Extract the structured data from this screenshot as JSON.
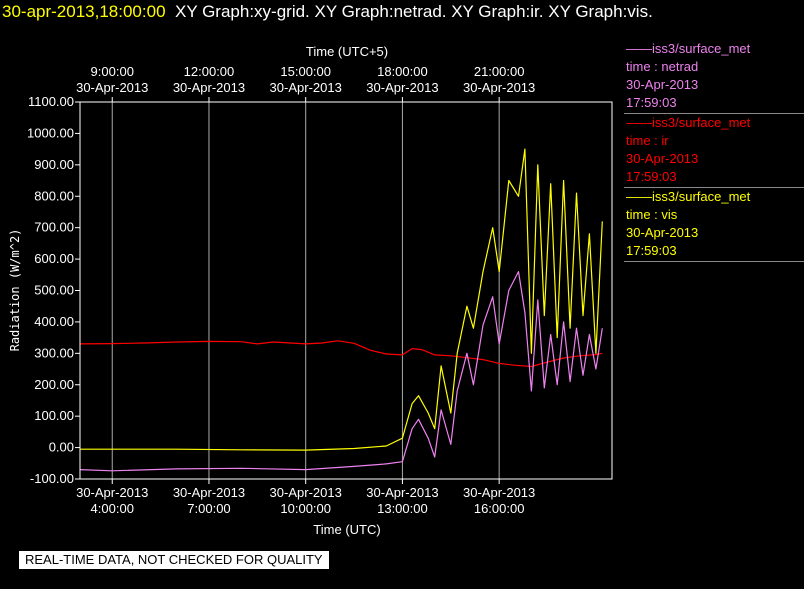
{
  "header": {
    "timestamp": "30-apr-2013,18:00:00",
    "graphs": "XY Graph:xy-grid.  XY Graph:netrad.  XY Graph:ir.  XY Graph:vis."
  },
  "disclaimer": "REAL-TIME DATA, NOT CHECKED FOR QUALITY",
  "legend": [
    {
      "title": "iss3/surface_met",
      "var": "time : netrad",
      "date": "30-Apr-2013",
      "time": "17:59:03",
      "color": "#ee82ee"
    },
    {
      "title": "iss3/surface_met",
      "var": "time : ir",
      "date": "30-Apr-2013",
      "time": "17:59:03",
      "color": "#ff0000"
    },
    {
      "title": "iss3/surface_met",
      "var": "time : vis",
      "date": "30-Apr-2013",
      "time": "17:59:03",
      "color": "#ffff00"
    }
  ],
  "chart_data": {
    "type": "line",
    "ylabel": "Radiation (W/m^2)",
    "xlabel": "Time (UTC)",
    "xlabel_top": "Time (UTC+5)",
    "ylim": [
      -100,
      1100
    ],
    "xlim_hours": [
      3.0,
      19.5
    ],
    "y_ticks": [
      "-100.00",
      "0.00",
      "100.00",
      "200.00",
      "300.00",
      "400.00",
      "500.00",
      "600.00",
      "700.00",
      "800.00",
      "900.00",
      "1000.00",
      "1100.00"
    ],
    "x_ticks_bottom": [
      {
        "h": 4,
        "date": "30-Apr-2013",
        "time": "4:00:00"
      },
      {
        "h": 7,
        "date": "30-Apr-2013",
        "time": "7:00:00"
      },
      {
        "h": 10,
        "date": "30-Apr-2013",
        "time": "10:00:00"
      },
      {
        "h": 13,
        "date": "30-Apr-2013",
        "time": "13:00:00"
      },
      {
        "h": 16,
        "date": "30-Apr-2013",
        "time": "16:00:00"
      }
    ],
    "x_ticks_top": [
      {
        "h": 4,
        "time": "9:00:00",
        "date": "30-Apr-2013"
      },
      {
        "h": 7,
        "time": "12:00:00",
        "date": "30-Apr-2013"
      },
      {
        "h": 10,
        "time": "15:00:00",
        "date": "30-Apr-2013"
      },
      {
        "h": 13,
        "time": "18:00:00",
        "date": "30-Apr-2013"
      },
      {
        "h": 16,
        "time": "21:00:00",
        "date": "30-Apr-2013"
      }
    ],
    "grid": "vertical",
    "series": [
      {
        "name": "ir",
        "color": "#ff0000",
        "x": [
          3.0,
          4.0,
          5.0,
          6.0,
          7.0,
          8.0,
          8.5,
          9.0,
          10.0,
          10.5,
          11.0,
          11.5,
          12.0,
          12.5,
          13.0,
          13.3,
          13.6,
          14.0,
          14.5,
          15.0,
          15.5,
          16.0,
          16.5,
          17.0,
          17.5,
          18.0,
          18.5,
          19.0,
          19.2
        ],
        "y": [
          330,
          331,
          333,
          336,
          338,
          337,
          330,
          336,
          330,
          333,
          340,
          332,
          310,
          298,
          295,
          315,
          312,
          295,
          292,
          286,
          280,
          268,
          262,
          258,
          272,
          285,
          292,
          296,
          300
        ]
      },
      {
        "name": "vis",
        "color": "#ffff00",
        "x": [
          3.0,
          4.0,
          6.0,
          8.0,
          10.0,
          11.5,
          12.5,
          13.0,
          13.3,
          13.5,
          13.8,
          14.0,
          14.2,
          14.5,
          14.7,
          15.0,
          15.2,
          15.5,
          15.8,
          16.0,
          16.3,
          16.6,
          16.8,
          17.0,
          17.2,
          17.4,
          17.6,
          17.8,
          18.0,
          18.2,
          18.4,
          18.6,
          18.8,
          19.0,
          19.2
        ],
        "y": [
          -5,
          -5,
          -5,
          -7,
          -8,
          -3,
          5,
          30,
          140,
          165,
          110,
          60,
          260,
          110,
          300,
          450,
          380,
          560,
          700,
          560,
          850,
          800,
          950,
          300,
          900,
          420,
          840,
          350,
          850,
          380,
          810,
          420,
          680,
          300,
          720
        ]
      },
      {
        "name": "netrad",
        "color": "#ee82ee",
        "x": [
          3.0,
          4.0,
          6.0,
          8.0,
          10.0,
          11.5,
          12.5,
          13.0,
          13.3,
          13.5,
          13.8,
          14.0,
          14.2,
          14.5,
          14.7,
          15.0,
          15.2,
          15.5,
          15.8,
          16.0,
          16.3,
          16.6,
          16.8,
          17.0,
          17.2,
          17.4,
          17.6,
          17.8,
          18.0,
          18.2,
          18.4,
          18.6,
          18.8,
          19.0,
          19.2
        ],
        "y": [
          -70,
          -74,
          -68,
          -66,
          -70,
          -60,
          -52,
          -45,
          60,
          90,
          30,
          -30,
          120,
          10,
          180,
          300,
          200,
          390,
          480,
          330,
          500,
          560,
          430,
          180,
          470,
          190,
          360,
          200,
          400,
          210,
          380,
          230,
          360,
          250,
          380
        ]
      }
    ]
  }
}
